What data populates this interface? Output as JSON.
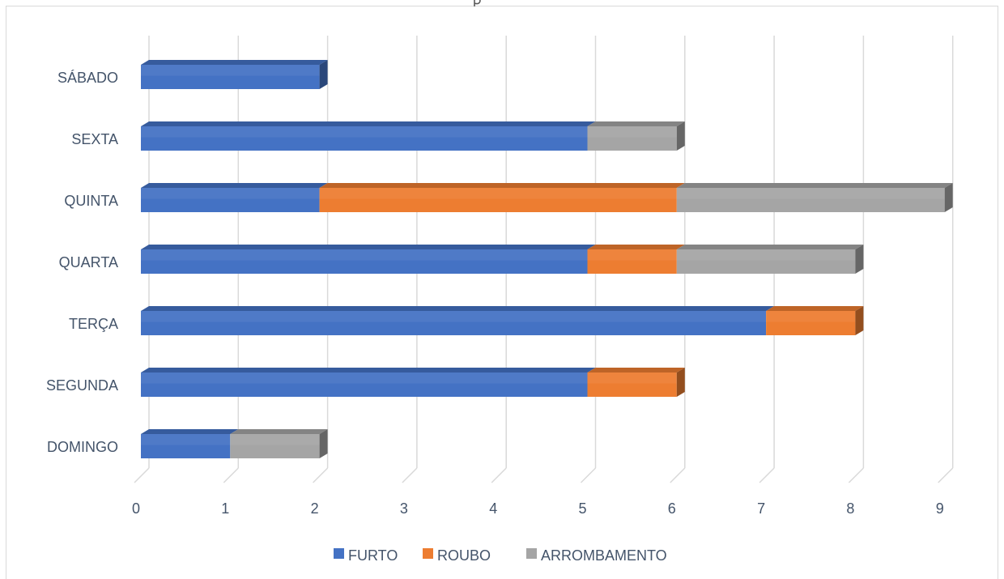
{
  "chart_data": {
    "type": "bar",
    "orientation": "horizontal",
    "stacked": true,
    "style": "3d",
    "categories": [
      "DOMINGO",
      "SEGUNDA",
      "TERÇA",
      "QUARTA",
      "QUINTA",
      "SEXTA",
      "SÁBADO"
    ],
    "series": [
      {
        "name": "FURTO",
        "color": "#4472c4",
        "values": [
          1,
          5,
          7,
          5,
          2,
          5,
          2
        ]
      },
      {
        "name": "ROUBO",
        "color": "#ed7d31",
        "values": [
          0,
          1,
          1,
          1,
          4,
          0,
          0
        ]
      },
      {
        "name": "ARROMBAMENTO",
        "color": "#a5a5a5",
        "values": [
          1,
          0,
          0,
          2,
          3,
          1,
          0
        ]
      }
    ],
    "x_ticks": [
      "0",
      "1",
      "2",
      "3",
      "4",
      "5",
      "6",
      "7",
      "8",
      "9"
    ],
    "xlim": [
      0,
      9
    ],
    "grid": true,
    "legend_position": "bottom"
  }
}
